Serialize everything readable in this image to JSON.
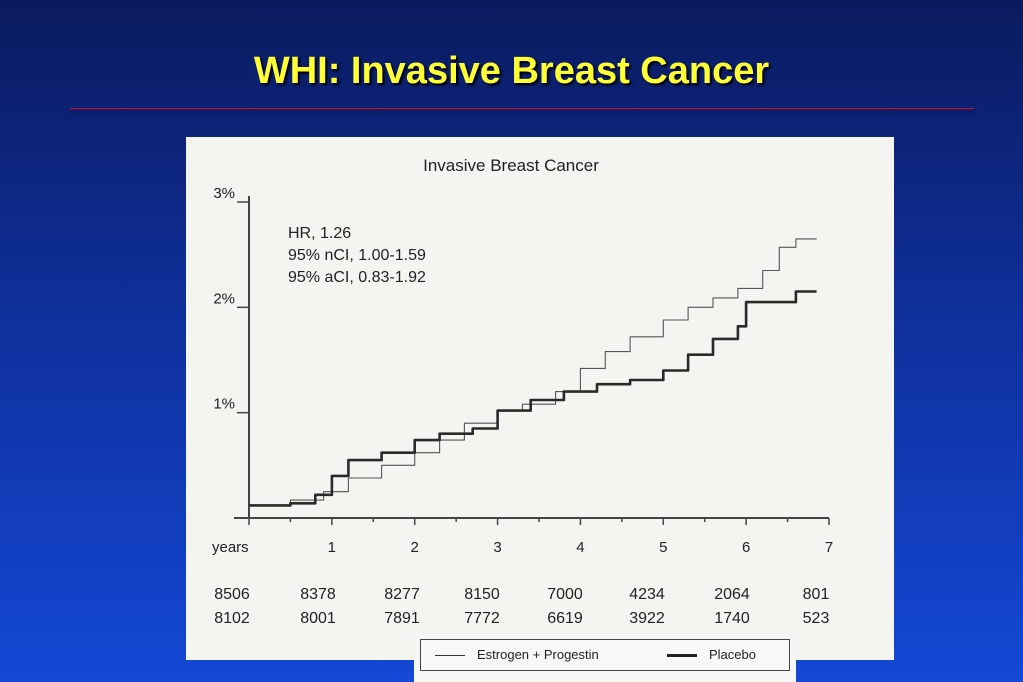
{
  "slide": {
    "title": "WHI:  Invasive Breast Cancer"
  },
  "colors": {
    "background": "#0f2f9a",
    "title": "#ffff33",
    "rule": "#c8102e",
    "panel": "#f4f4f1",
    "ink": "#222222"
  },
  "chart_data": {
    "type": "line",
    "title": "Invasive Breast Cancer",
    "xlabel": "years",
    "ylabel": "",
    "xlim": [
      0,
      7
    ],
    "ylim": [
      0,
      3
    ],
    "y_ticks": [
      {
        "value": 1,
        "label": "1%"
      },
      {
        "value": 2,
        "label": "2%"
      },
      {
        "value": 3,
        "label": "3%"
      }
    ],
    "x_ticks": [
      {
        "value": 1,
        "label": "1"
      },
      {
        "value": 2,
        "label": "2"
      },
      {
        "value": 3,
        "label": "3"
      },
      {
        "value": 4,
        "label": "4"
      },
      {
        "value": 5,
        "label": "5"
      },
      {
        "value": 6,
        "label": "6"
      },
      {
        "value": 7,
        "label": "7"
      }
    ],
    "annotations": [
      "HR, 1.26",
      "95% nCI, 1.00-1.59",
      "95% aCI, 0.83-1.92"
    ],
    "series": [
      {
        "name": "Estrogen + Progestin",
        "style": "thin",
        "x": [
          0,
          0.5,
          0.9,
          1.2,
          1.6,
          2.0,
          2.3,
          2.6,
          3.0,
          3.3,
          3.7,
          4.0,
          4.3,
          4.6,
          5.0,
          5.3,
          5.6,
          5.9,
          6.2,
          6.4,
          6.6,
          6.85
        ],
        "y": [
          0.12,
          0.17,
          0.25,
          0.38,
          0.5,
          0.62,
          0.74,
          0.9,
          1.02,
          1.08,
          1.2,
          1.42,
          1.58,
          1.72,
          1.88,
          2.0,
          2.09,
          2.18,
          2.35,
          2.57,
          2.65,
          2.65
        ]
      },
      {
        "name": "Placebo",
        "style": "thick",
        "x": [
          0,
          0.5,
          0.8,
          1.0,
          1.2,
          1.6,
          2.0,
          2.3,
          2.7,
          3.0,
          3.4,
          3.8,
          4.2,
          4.6,
          5.0,
          5.3,
          5.6,
          5.9,
          6.0,
          6.3,
          6.6,
          6.85
        ],
        "y": [
          0.12,
          0.14,
          0.22,
          0.4,
          0.55,
          0.62,
          0.74,
          0.8,
          0.85,
          1.02,
          1.12,
          1.2,
          1.27,
          1.31,
          1.4,
          1.55,
          1.7,
          1.82,
          2.05,
          2.05,
          2.15,
          2.15
        ]
      }
    ],
    "at_risk": {
      "rows": [
        [
          "8506",
          "8378",
          "8277",
          "8150",
          "7000",
          "4234",
          "2064",
          "801"
        ],
        [
          "8102",
          "8001",
          "7891",
          "7772",
          "6619",
          "3922",
          "1740",
          "523"
        ]
      ]
    },
    "legend": {
      "position": "bottom",
      "items": [
        {
          "label": "Estrogen + Progestin",
          "style": "thin"
        },
        {
          "label": "Placebo",
          "style": "thick"
        }
      ]
    }
  }
}
